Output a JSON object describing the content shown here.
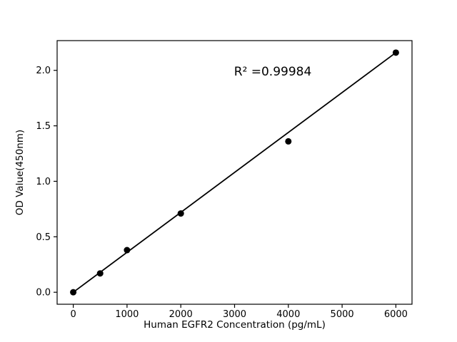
{
  "figure": {
    "background": "#ffffff",
    "text_color": "#000000"
  },
  "chart_data": {
    "type": "scatter",
    "title": "",
    "xlabel": "Human EGFR2 Concentration (pg/mL)",
    "ylabel": "OD Value(450nm)",
    "annotation": "R² =0.99984",
    "x": [
      0,
      500,
      1000,
      2000,
      4000,
      6000
    ],
    "y": [
      0.0,
      0.17,
      0.38,
      0.71,
      1.36,
      2.16
    ],
    "fit_line": {
      "x": [
        0,
        6000
      ],
      "y": [
        0.0,
        2.16
      ]
    },
    "x_ticks": [
      "0",
      "1000",
      "2000",
      "3000",
      "4000",
      "5000",
      "6000"
    ],
    "y_ticks": [
      "0.0",
      "0.5",
      "1.0",
      "1.5",
      "2.0"
    ],
    "xlim": [
      -300,
      6300
    ],
    "ylim": [
      -0.108,
      2.268
    ],
    "grid": false,
    "legend": null,
    "marker_color": "#000000",
    "line_color": "#000000",
    "frame_color": "#000000"
  }
}
